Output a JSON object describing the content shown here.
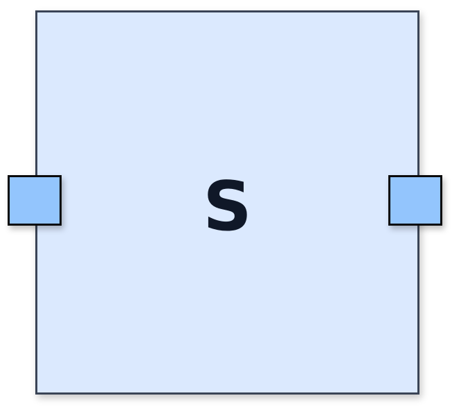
{
  "block": {
    "label": "S",
    "fill_color": "#dbe9fe",
    "border_color": "#3a4456",
    "label_color": "#101828"
  },
  "ports": {
    "fill_color": "#93c5fd",
    "border_color": "#0a0a0a",
    "items": [
      "left-port",
      "right-port"
    ]
  }
}
